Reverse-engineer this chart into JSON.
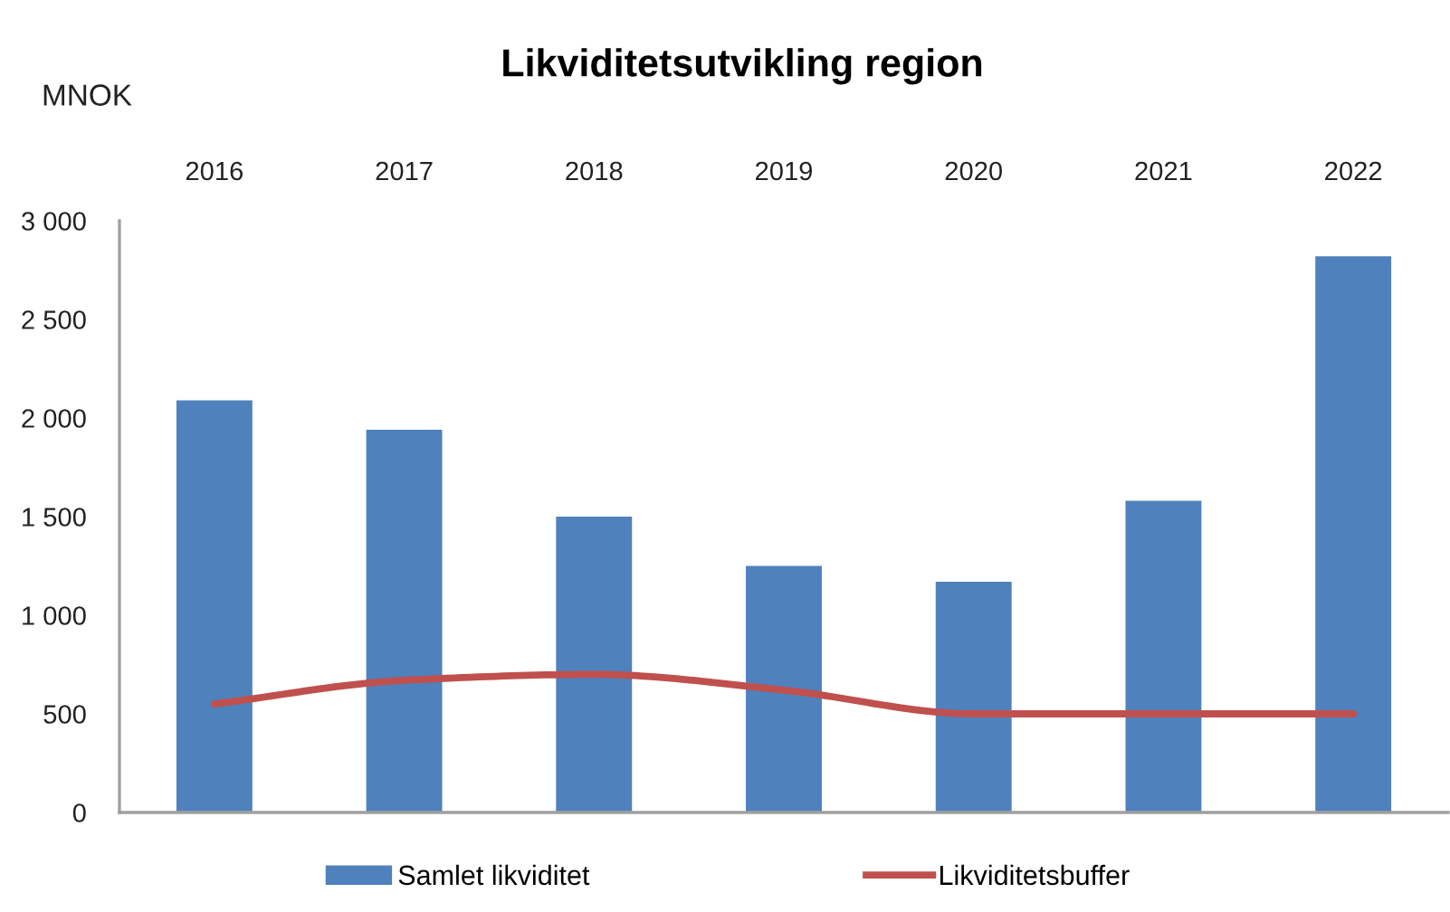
{
  "chart_data": {
    "type": "bar",
    "title": "Likviditetsutvikling region",
    "ylabel": "MNOK",
    "categories": [
      "2016",
      "2017",
      "2018",
      "2019",
      "2020",
      "2021",
      "2022"
    ],
    "series": [
      {
        "name": "Samlet likviditet",
        "color": "#4f81bd",
        "values": [
          2090,
          1940,
          1500,
          1250,
          1170,
          1580,
          2820
        ]
      },
      {
        "name": "Likviditetsbuffer",
        "type": "line",
        "color": "#c0504d",
        "values": [
          550,
          670,
          700,
          620,
          500,
          500,
          500
        ]
      }
    ],
    "ylim": [
      0,
      3000
    ],
    "yticks": [
      0,
      500,
      {
        "value": 1000,
        "label": "1 000"
      },
      {
        "value": 1500,
        "label": "1 500"
      },
      {
        "value": 2000,
        "label": "2 000"
      },
      {
        "value": 2500,
        "label": "2 500"
      },
      {
        "value": 3000,
        "label": "3 000"
      }
    ],
    "legend": "bottom"
  }
}
